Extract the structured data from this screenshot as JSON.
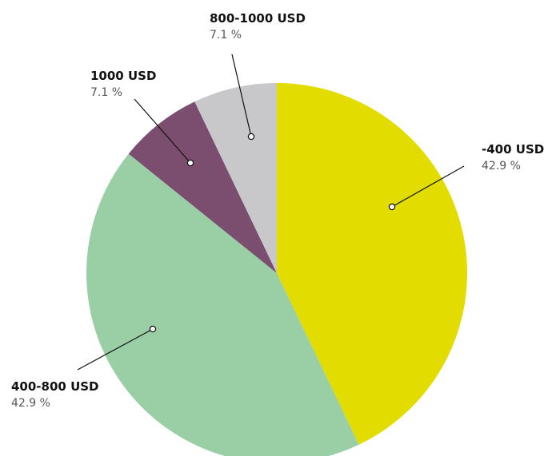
{
  "chart_data": {
    "type": "pie",
    "title": "",
    "slices": [
      {
        "label": "-400 USD",
        "value": 42.9,
        "value_label": "42.9 %",
        "color": "#e2dc00"
      },
      {
        "label": "400-800 USD",
        "value": 42.9,
        "value_label": "42.9 %",
        "color": "#9acfa6"
      },
      {
        "label": "1000 USD",
        "value": 7.1,
        "value_label": "7.1 %",
        "color": "#7b4e70"
      },
      {
        "label": "800-1000 USD",
        "value": 7.1,
        "value_label": "7.1 %",
        "color": "#c8c8ca"
      }
    ],
    "start_angle_deg": 0,
    "direction": "clockwise",
    "legend": "none",
    "label_style": "external-callouts"
  }
}
